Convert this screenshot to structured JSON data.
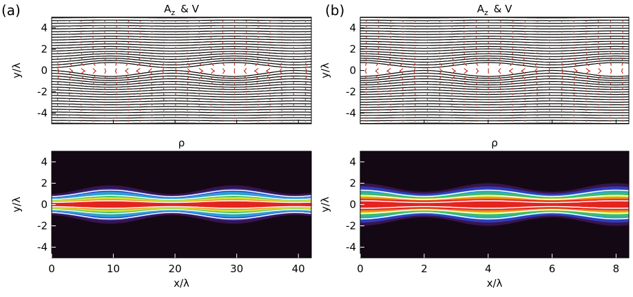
{
  "labels": [
    "(a)",
    "(b)"
  ],
  "chart_data": [
    {
      "type": "contour",
      "title": [
        "A",
        "z",
        "& V"
      ],
      "y_label": "y/λ",
      "xlim": [
        0,
        42.1
      ],
      "ylim": [
        -5,
        5
      ],
      "xticks": [
        0,
        10,
        20,
        30,
        40
      ],
      "yticks": [
        -4,
        -2,
        0,
        2,
        4
      ],
      "period": 20,
      "phase": 9.5
    },
    {
      "type": "heatmap",
      "title": [
        "ρ"
      ],
      "x_label": "x/λ",
      "y_label": "y/λ",
      "xlim": [
        0,
        42.1
      ],
      "ylim": [
        -5,
        5
      ],
      "xticks": [
        0,
        10,
        20,
        30,
        40
      ],
      "yticks": [
        -4,
        -2,
        0,
        2,
        4
      ],
      "period": 20,
      "phase": 9.5
    },
    {
      "type": "contour",
      "title": [
        "A",
        "z",
        "& V"
      ],
      "y_label": "y/λ",
      "xlim": [
        0,
        8.4
      ],
      "ylim": [
        -5,
        5
      ],
      "xticks": [
        0,
        2,
        4,
        6,
        8
      ],
      "yticks": [
        -4,
        -2,
        0,
        2,
        4
      ],
      "period": 4,
      "phase": 0
    },
    {
      "type": "heatmap",
      "title": [
        "ρ"
      ],
      "x_label": "x/λ",
      "y_label": "y/λ",
      "xlim": [
        0,
        8.4
      ],
      "ylim": [
        -5,
        5
      ],
      "xticks": [
        0,
        2,
        4,
        6,
        8
      ],
      "yticks": [
        -4,
        -2,
        0,
        2,
        4
      ],
      "period": 4,
      "phase": 0
    }
  ]
}
